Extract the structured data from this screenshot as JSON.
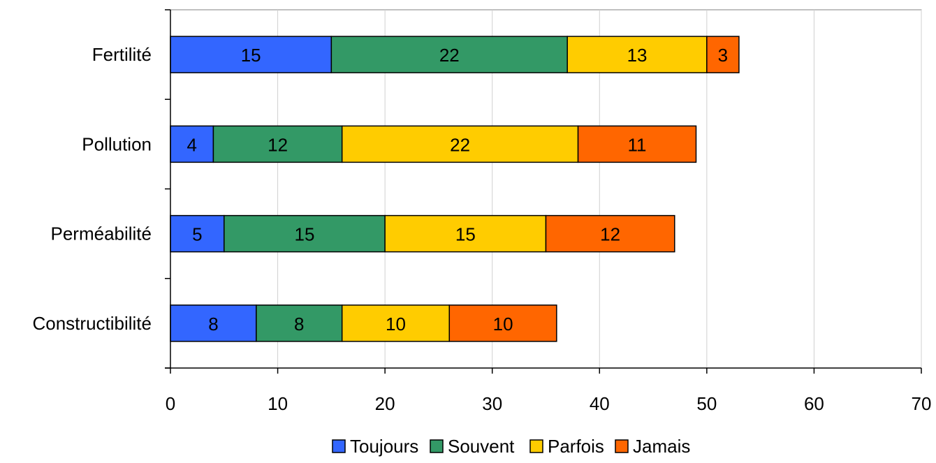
{
  "chart_data": {
    "type": "bar",
    "orientation": "horizontal",
    "stacked": true,
    "categories": [
      "Fertilité",
      "Pollution",
      "Perméabilité",
      "Constructibilité"
    ],
    "series": [
      {
        "name": "Toujours",
        "color": "#3366FF",
        "values": [
          15,
          4,
          5,
          8
        ]
      },
      {
        "name": "Souvent",
        "color": "#339966",
        "values": [
          22,
          12,
          15,
          8
        ]
      },
      {
        "name": "Parfois",
        "color": "#FFCC00",
        "values": [
          13,
          22,
          15,
          10
        ]
      },
      {
        "name": "Jamais",
        "color": "#FF6600",
        "values": [
          3,
          11,
          12,
          10
        ]
      }
    ],
    "xlim": [
      0,
      70
    ],
    "xticks": [
      0,
      10,
      20,
      30,
      40,
      50,
      60,
      70
    ],
    "grid": "vertical",
    "legend": "bottom",
    "data_labels": true
  }
}
